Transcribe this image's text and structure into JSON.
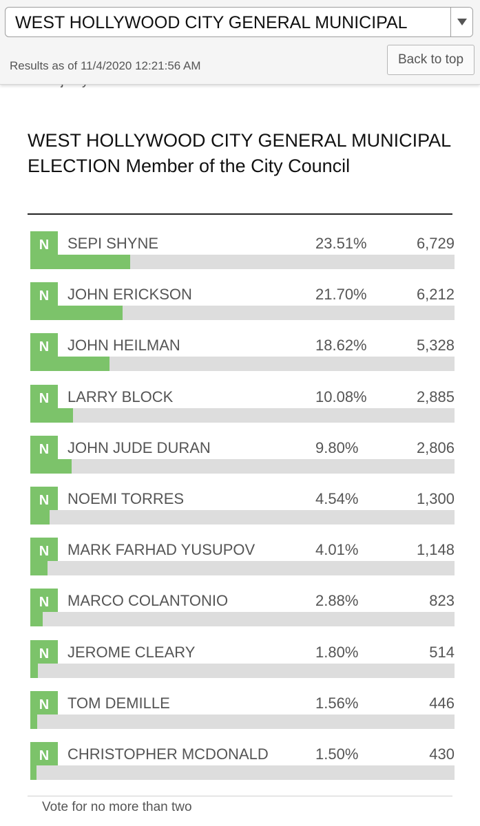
{
  "header": {
    "contest_select_value": "WEST HOLLYWOOD CITY GENERAL MUNICIPAL",
    "results_as_of": "Results as of 11/4/2020 12:21:56 AM",
    "back_to_top_label": "Back to top"
  },
  "peek_text": "Majority of votes cast",
  "contest": {
    "title": "WEST HOLLYWOOD CITY GENERAL MUNICIPAL ELECTION Member of the City Council",
    "footer_note": "Vote for no more than two",
    "candidates": [
      {
        "party": "N",
        "name": "SEPI SHYNE",
        "pct_text": "23.51%",
        "pct": 23.51,
        "votes": "6,729"
      },
      {
        "party": "N",
        "name": "JOHN ERICKSON",
        "pct_text": "21.70%",
        "pct": 21.7,
        "votes": "6,212"
      },
      {
        "party": "N",
        "name": "JOHN HEILMAN",
        "pct_text": "18.62%",
        "pct": 18.62,
        "votes": "5,328"
      },
      {
        "party": "N",
        "name": "LARRY BLOCK",
        "pct_text": "10.08%",
        "pct": 10.08,
        "votes": "2,885"
      },
      {
        "party": "N",
        "name": "JOHN JUDE DURAN",
        "pct_text": "9.80%",
        "pct": 9.8,
        "votes": "2,806"
      },
      {
        "party": "N",
        "name": "NOEMI TORRES",
        "pct_text": "4.54%",
        "pct": 4.54,
        "votes": "1,300"
      },
      {
        "party": "N",
        "name": "MARK FARHAD YUSUPOV",
        "pct_text": "4.01%",
        "pct": 4.01,
        "votes": "1,148"
      },
      {
        "party": "N",
        "name": "MARCO COLANTONIO",
        "pct_text": "2.88%",
        "pct": 2.88,
        "votes": "823"
      },
      {
        "party": "N",
        "name": "JEROME CLEARY",
        "pct_text": "1.80%",
        "pct": 1.8,
        "votes": "514"
      },
      {
        "party": "N",
        "name": "TOM DEMILLE",
        "pct_text": "1.56%",
        "pct": 1.56,
        "votes": "446"
      },
      {
        "party": "N",
        "name": "CHRISTOPHER MCDONALD",
        "pct_text": "1.50%",
        "pct": 1.5,
        "votes": "430"
      }
    ]
  },
  "icons": {
    "dropdown": "chevron-down-icon"
  },
  "colors": {
    "party_badge": "#7cc36a",
    "bar_fill": "#7cc36a",
    "bar_track": "#dddddd",
    "text_secondary": "#555555"
  }
}
